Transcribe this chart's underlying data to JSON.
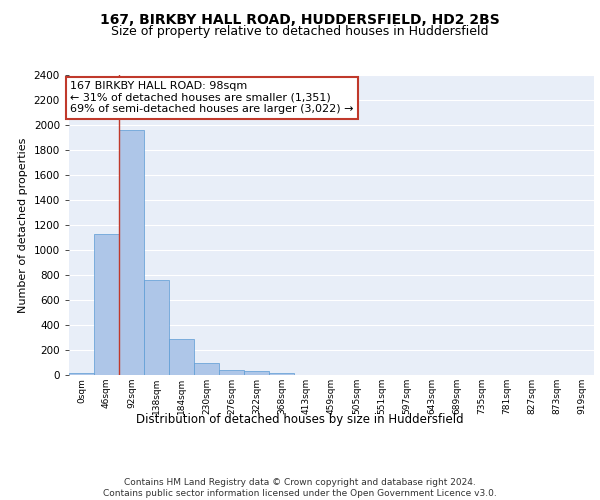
{
  "title_line1": "167, BIRKBY HALL ROAD, HUDDERSFIELD, HD2 2BS",
  "title_line2": "Size of property relative to detached houses in Huddersfield",
  "xlabel": "Distribution of detached houses by size in Huddersfield",
  "ylabel": "Number of detached properties",
  "footnote": "Contains HM Land Registry data © Crown copyright and database right 2024.\nContains public sector information licensed under the Open Government Licence v3.0.",
  "bar_labels": [
    "0sqm",
    "46sqm",
    "92sqm",
    "138sqm",
    "184sqm",
    "230sqm",
    "276sqm",
    "322sqm",
    "368sqm",
    "413sqm",
    "459sqm",
    "505sqm",
    "551sqm",
    "597sqm",
    "643sqm",
    "689sqm",
    "735sqm",
    "781sqm",
    "827sqm",
    "873sqm",
    "919sqm"
  ],
  "bar_values": [
    20,
    1130,
    1960,
    760,
    290,
    100,
    40,
    30,
    20,
    0,
    0,
    0,
    0,
    0,
    0,
    0,
    0,
    0,
    0,
    0,
    0
  ],
  "bar_color": "#aec6e8",
  "bar_edge_color": "#5b9bd5",
  "background_color": "#e8eef8",
  "grid_color": "#ffffff",
  "vline_x": 2.0,
  "vline_color": "#c0392b",
  "annotation_text": "167 BIRKBY HALL ROAD: 98sqm\n← 31% of detached houses are smaller (1,351)\n69% of semi-detached houses are larger (3,022) →",
  "annotation_box_color": "#c0392b",
  "ylim": [
    0,
    2400
  ],
  "yticks": [
    0,
    200,
    400,
    600,
    800,
    1000,
    1200,
    1400,
    1600,
    1800,
    2000,
    2200,
    2400
  ],
  "title_fontsize": 10,
  "subtitle_fontsize": 9,
  "annotation_fontsize": 8,
  "footnote_fontsize": 6.5,
  "xlabel_fontsize": 8.5,
  "ylabel_fontsize": 8
}
